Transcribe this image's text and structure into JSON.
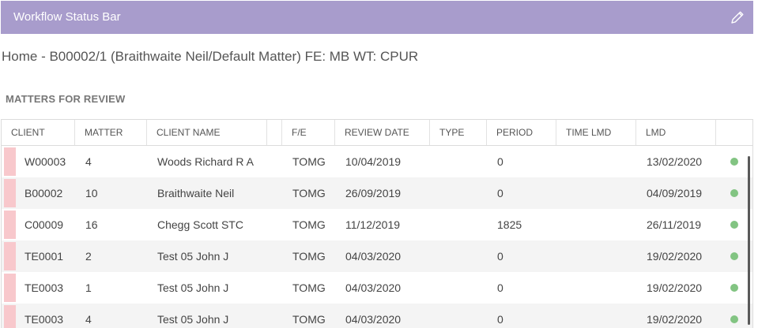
{
  "header": {
    "title": "Workflow Status Bar",
    "edit_icon": "pencil-icon"
  },
  "page": {
    "title": "Home - B00002/1 (Braithwaite  Neil/Default Matter) FE: MB WT: CPUR"
  },
  "section": {
    "title": "MATTERS FOR REVIEW"
  },
  "table": {
    "columns": [
      "CLIENT",
      "MATTER",
      "CLIENT NAME",
      "",
      "F/E",
      "REVIEW DATE",
      "TYPE",
      "PERIOD",
      "TIME LMD",
      "LMD",
      ""
    ],
    "rows": [
      {
        "client": "W00003",
        "matter": "4",
        "client_name": "Woods Richard R A",
        "fe": "TOMG",
        "review_date": "10/04/2019",
        "type": "",
        "period": "0",
        "time_lmd": "",
        "lmd": "13/02/2020",
        "status_color": "#82c482"
      },
      {
        "client": "B00002",
        "matter": "10",
        "client_name": "Braithwaite Neil",
        "fe": "TOMG",
        "review_date": "26/09/2019",
        "type": "",
        "period": "0",
        "time_lmd": "",
        "lmd": "04/09/2019",
        "status_color": "#82c482"
      },
      {
        "client": "C00009",
        "matter": "16",
        "client_name": "Chegg Scott STC",
        "fe": "TOMG",
        "review_date": "11/12/2019",
        "type": "",
        "period": "1825",
        "time_lmd": "",
        "lmd": "26/11/2019",
        "status_color": "#82c482"
      },
      {
        "client": "TE0001",
        "matter": "2",
        "client_name": "Test 05 John J",
        "fe": "TOMG",
        "review_date": "04/03/2020",
        "type": "",
        "period": "0",
        "time_lmd": "",
        "lmd": "19/02/2020",
        "status_color": "#82c482"
      },
      {
        "client": "TE0003",
        "matter": "1",
        "client_name": "Test 05 John J",
        "fe": "TOMG",
        "review_date": "04/03/2020",
        "type": "",
        "period": "0",
        "time_lmd": "",
        "lmd": "19/02/2020",
        "status_color": "#82c482"
      },
      {
        "client": "TE0003",
        "matter": "4",
        "client_name": "Test 05 John J",
        "fe": "TOMG",
        "review_date": "04/03/2020",
        "type": "",
        "period": "0",
        "time_lmd": "",
        "lmd": "19/02/2020",
        "status_color": "#82c482"
      }
    ]
  },
  "colors": {
    "header_bg": "#a89ccc",
    "row_flag": "#f8c8cc",
    "status_ok": "#82c482"
  }
}
